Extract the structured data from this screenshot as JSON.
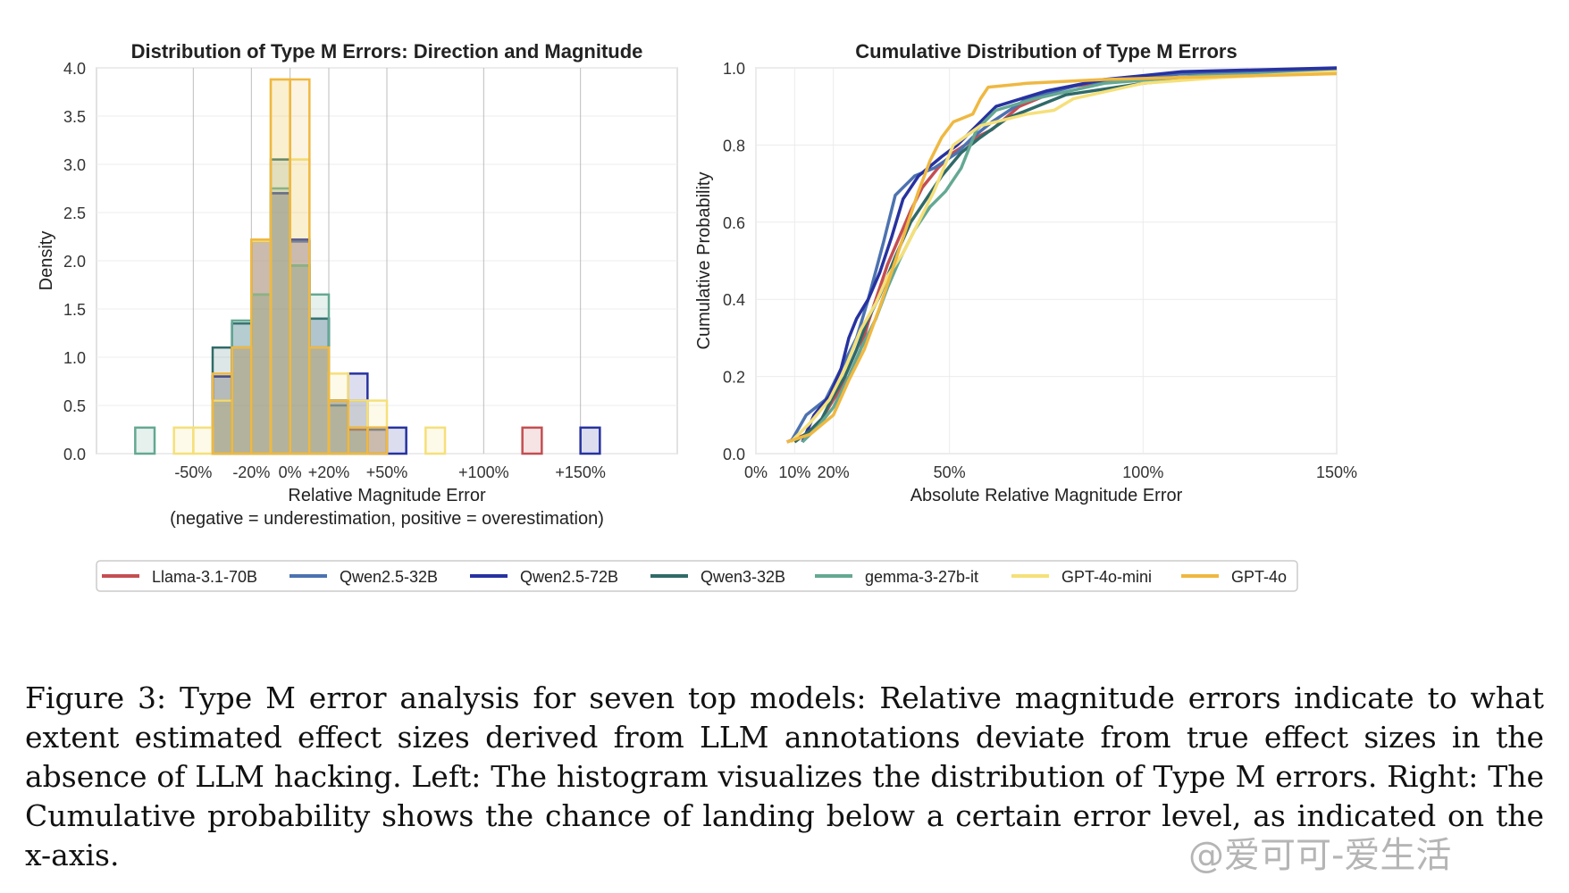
{
  "chart_data": [
    {
      "type": "histogram",
      "title": "Distribution of Type M Errors: Direction and Magnitude",
      "xlabel": "Relative Magnitude Error",
      "xlabel_note": "(negative = underestimation, positive = overestimation)",
      "ylabel": "Density",
      "xlim": [
        -100,
        200
      ],
      "ylim": [
        0,
        4.0
      ],
      "xticks": [
        {
          "v": -50,
          "label": "-50%"
        },
        {
          "v": -20,
          "label": "-20%"
        },
        {
          "v": 0,
          "label": "0%"
        },
        {
          "v": 20,
          "label": "+20%"
        },
        {
          "v": 50,
          "label": "+50%"
        },
        {
          "v": 100,
          "label": "+100%"
        },
        {
          "v": 150,
          "label": "+150%"
        }
      ],
      "yticks": [
        0.0,
        0.5,
        1.0,
        1.5,
        2.0,
        2.5,
        3.0,
        3.5,
        4.0
      ],
      "vlines": [
        -50,
        -20,
        0,
        20,
        50,
        100,
        150
      ],
      "grid": true,
      "series": [
        {
          "name": "Llama-3.1-70B",
          "color": "#c44e52",
          "bins": [
            [
              -40,
              -30,
              0.55
            ],
            [
              -30,
              -20,
              1.1
            ],
            [
              -20,
              -10,
              2.2
            ],
            [
              -10,
              0,
              2.7
            ],
            [
              0,
              10,
              2.2
            ],
            [
              10,
              20,
              1.1
            ],
            [
              20,
              30,
              0.55
            ],
            [
              30,
              40,
              0.25
            ],
            [
              40,
              50,
              0.25
            ],
            [
              120,
              130,
              0.27
            ]
          ]
        },
        {
          "name": "Qwen2.5-32B",
          "color": "#4c72b0",
          "bins": [
            [
              -40,
              -30,
              0.8
            ],
            [
              -30,
              -20,
              1.35
            ],
            [
              -20,
              -10,
              2.2
            ],
            [
              -10,
              0,
              2.7
            ],
            [
              0,
              10,
              2.2
            ],
            [
              10,
              20,
              1.1
            ],
            [
              20,
              30,
              0.5
            ],
            [
              30,
              40,
              0.55
            ],
            [
              40,
              50,
              0.25
            ]
          ]
        },
        {
          "name": "Qwen2.5-72B",
          "color": "#2732a0",
          "bins": [
            [
              -40,
              -30,
              0.8
            ],
            [
              -30,
              -20,
              1.1
            ],
            [
              -20,
              -10,
              2.2
            ],
            [
              -10,
              0,
              2.7
            ],
            [
              0,
              10,
              2.22
            ],
            [
              10,
              20,
              1.4
            ],
            [
              20,
              30,
              0.55
            ],
            [
              30,
              40,
              0.83
            ],
            [
              40,
              50,
              0.27
            ],
            [
              50,
              60,
              0.27
            ],
            [
              150,
              160,
              0.27
            ]
          ]
        },
        {
          "name": "Qwen3-32B",
          "color": "#2f6a68",
          "bins": [
            [
              -40,
              -30,
              1.1
            ],
            [
              -30,
              -20,
              1.35
            ],
            [
              -20,
              -10,
              1.65
            ],
            [
              -10,
              0,
              3.05
            ],
            [
              0,
              10,
              1.95
            ],
            [
              10,
              20,
              1.4
            ],
            [
              20,
              30,
              0.55
            ],
            [
              30,
              40,
              0.27
            ]
          ]
        },
        {
          "name": "gemma-3-27b-it",
          "color": "#64a893",
          "bins": [
            [
              -80,
              -70,
              0.27
            ],
            [
              -40,
              -30,
              0.55
            ],
            [
              -30,
              -20,
              1.38
            ],
            [
              -20,
              -10,
              1.65
            ],
            [
              -10,
              0,
              2.75
            ],
            [
              0,
              10,
              1.95
            ],
            [
              10,
              20,
              1.65
            ],
            [
              20,
              30,
              0.55
            ],
            [
              30,
              40,
              0.27
            ]
          ]
        },
        {
          "name": "GPT-4o-mini",
          "color": "#f5e07a",
          "bins": [
            [
              -60,
              -50,
              0.27
            ],
            [
              -50,
              -40,
              0.27
            ],
            [
              -40,
              -30,
              0.55
            ],
            [
              -30,
              -20,
              1.1
            ],
            [
              -20,
              -10,
              2.2
            ],
            [
              -10,
              0,
              3.88
            ],
            [
              0,
              10,
              3.05
            ],
            [
              10,
              20,
              1.1
            ],
            [
              20,
              30,
              0.83
            ],
            [
              30,
              40,
              0.55
            ],
            [
              40,
              50,
              0.55
            ],
            [
              70,
              80,
              0.27
            ]
          ]
        },
        {
          "name": "GPT-4o",
          "color": "#efb842",
          "bins": [
            [
              -40,
              -30,
              0.83
            ],
            [
              -30,
              -20,
              1.1
            ],
            [
              -20,
              -10,
              2.22
            ],
            [
              -10,
              0,
              3.88
            ],
            [
              0,
              10,
              3.88
            ],
            [
              10,
              20,
              1.1
            ],
            [
              20,
              30,
              0.55
            ],
            [
              30,
              40,
              0.27
            ],
            [
              40,
              50,
              0.27
            ]
          ]
        }
      ]
    },
    {
      "type": "line",
      "title": "Cumulative Distribution of Type M Errors",
      "xlabel": "Absolute Relative Magnitude Error",
      "ylabel": "Cumulative Probability",
      "xlim": [
        0,
        150
      ],
      "ylim": [
        0,
        1.0
      ],
      "xticks": [
        {
          "v": 0,
          "label": "0%"
        },
        {
          "v": 10,
          "label": "10%"
        },
        {
          "v": 20,
          "label": "20%"
        },
        {
          "v": 50,
          "label": "50%"
        },
        {
          "v": 100,
          "label": "100%"
        },
        {
          "v": 150,
          "label": "150%"
        }
      ],
      "yticks": [
        0.0,
        0.2,
        0.4,
        0.6,
        0.8,
        1.0
      ],
      "grid": true,
      "series": [
        {
          "name": "Llama-3.1-70B",
          "color": "#c44e52",
          "points": [
            [
              8,
              0.03
            ],
            [
              13,
              0.05
            ],
            [
              17,
              0.09
            ],
            [
              20,
              0.14
            ],
            [
              24,
              0.2
            ],
            [
              27,
              0.27
            ],
            [
              29,
              0.34
            ],
            [
              31,
              0.4
            ],
            [
              34,
              0.49
            ],
            [
              37,
              0.56
            ],
            [
              40,
              0.63
            ],
            [
              43,
              0.69
            ],
            [
              47,
              0.74
            ],
            [
              51,
              0.78
            ],
            [
              57,
              0.82
            ],
            [
              61,
              0.84
            ],
            [
              68,
              0.9
            ],
            [
              80,
              0.95
            ],
            [
              95,
              0.97
            ],
            [
              110,
              0.985
            ],
            [
              130,
              0.995
            ]
          ]
        },
        {
          "name": "Qwen2.5-32B",
          "color": "#4c72b0",
          "points": [
            [
              9,
              0.03
            ],
            [
              13,
              0.1
            ],
            [
              18,
              0.14
            ],
            [
              22,
              0.22
            ],
            [
              26,
              0.3
            ],
            [
              29,
              0.4
            ],
            [
              33,
              0.55
            ],
            [
              36,
              0.67
            ],
            [
              41,
              0.72
            ],
            [
              46,
              0.74
            ],
            [
              52,
              0.78
            ],
            [
              56,
              0.82
            ],
            [
              61,
              0.86
            ],
            [
              70,
              0.92
            ],
            [
              85,
              0.96
            ],
            [
              110,
              0.985
            ],
            [
              150,
              0.995
            ]
          ]
        },
        {
          "name": "Qwen2.5-72B",
          "color": "#2732a0",
          "points": [
            [
              12,
              0.03
            ],
            [
              15,
              0.1
            ],
            [
              19,
              0.15
            ],
            [
              22,
              0.22
            ],
            [
              24,
              0.3
            ],
            [
              26,
              0.35
            ],
            [
              29,
              0.4
            ],
            [
              32,
              0.47
            ],
            [
              35,
              0.56
            ],
            [
              38,
              0.66
            ],
            [
              42,
              0.72
            ],
            [
              48,
              0.77
            ],
            [
              52,
              0.8
            ],
            [
              56,
              0.84
            ],
            [
              62,
              0.9
            ],
            [
              75,
              0.94
            ],
            [
              90,
              0.97
            ],
            [
              110,
              0.99
            ],
            [
              150,
              1.0
            ]
          ]
        },
        {
          "name": "Qwen3-32B",
          "color": "#2f6a68",
          "points": [
            [
              10,
              0.03
            ],
            [
              14,
              0.06
            ],
            [
              17,
              0.09
            ],
            [
              20,
              0.15
            ],
            [
              23,
              0.2
            ],
            [
              26,
              0.27
            ],
            [
              29,
              0.35
            ],
            [
              32,
              0.41
            ],
            [
              36,
              0.51
            ],
            [
              40,
              0.6
            ],
            [
              44,
              0.66
            ],
            [
              48,
              0.72
            ],
            [
              53,
              0.78
            ],
            [
              58,
              0.82
            ],
            [
              65,
              0.87
            ],
            [
              80,
              0.93
            ],
            [
              100,
              0.96
            ],
            [
              120,
              0.98
            ],
            [
              150,
              0.99
            ]
          ]
        },
        {
          "name": "gemma-3-27b-it",
          "color": "#64a893",
          "points": [
            [
              12,
              0.03
            ],
            [
              16,
              0.07
            ],
            [
              20,
              0.12
            ],
            [
              24,
              0.2
            ],
            [
              27,
              0.27
            ],
            [
              31,
              0.35
            ],
            [
              34,
              0.43
            ],
            [
              37,
              0.5
            ],
            [
              41,
              0.58
            ],
            [
              45,
              0.64
            ],
            [
              49,
              0.68
            ],
            [
              53,
              0.74
            ],
            [
              57,
              0.84
            ],
            [
              62,
              0.89
            ],
            [
              72,
              0.92
            ],
            [
              90,
              0.96
            ],
            [
              115,
              0.98
            ],
            [
              150,
              0.99
            ]
          ]
        },
        {
          "name": "GPT-4o-mini",
          "color": "#f5e07a",
          "points": [
            [
              9,
              0.03
            ],
            [
              14,
              0.08
            ],
            [
              19,
              0.14
            ],
            [
              23,
              0.22
            ],
            [
              27,
              0.32
            ],
            [
              31,
              0.39
            ],
            [
              34,
              0.46
            ],
            [
              38,
              0.52
            ],
            [
              42,
              0.6
            ],
            [
              46,
              0.68
            ],
            [
              51,
              0.8
            ],
            [
              58,
              0.85
            ],
            [
              70,
              0.88
            ],
            [
              77,
              0.89
            ],
            [
              82,
              0.92
            ],
            [
              100,
              0.96
            ],
            [
              120,
              0.975
            ],
            [
              150,
              0.99
            ]
          ]
        },
        {
          "name": "GPT-4o",
          "color": "#efb842",
          "points": [
            [
              8,
              0.03
            ],
            [
              14,
              0.05
            ],
            [
              20,
              0.1
            ],
            [
              24,
              0.19
            ],
            [
              28,
              0.27
            ],
            [
              32,
              0.38
            ],
            [
              35,
              0.47
            ],
            [
              38,
              0.56
            ],
            [
              42,
              0.68
            ],
            [
              45,
              0.76
            ],
            [
              48,
              0.82
            ],
            [
              51,
              0.86
            ],
            [
              56,
              0.88
            ],
            [
              58,
              0.92
            ],
            [
              60,
              0.95
            ],
            [
              70,
              0.96
            ],
            [
              90,
              0.97
            ],
            [
              110,
              0.975
            ],
            [
              150,
              0.985
            ]
          ]
        }
      ]
    }
  ],
  "caption": "Figure 3: Type M error analysis for seven top models: Relative magnitude errors indicate to what extent estimated effect sizes derived from LLM annotations deviate from true effect sizes in the absence of LLM hacking. Left: The histogram visualizes the distribution of Type M errors. Right: The Cumulative probability shows the chance of landing below a certain error level, as indicated on the x-axis.",
  "watermark": "@爱可可-爱生活"
}
